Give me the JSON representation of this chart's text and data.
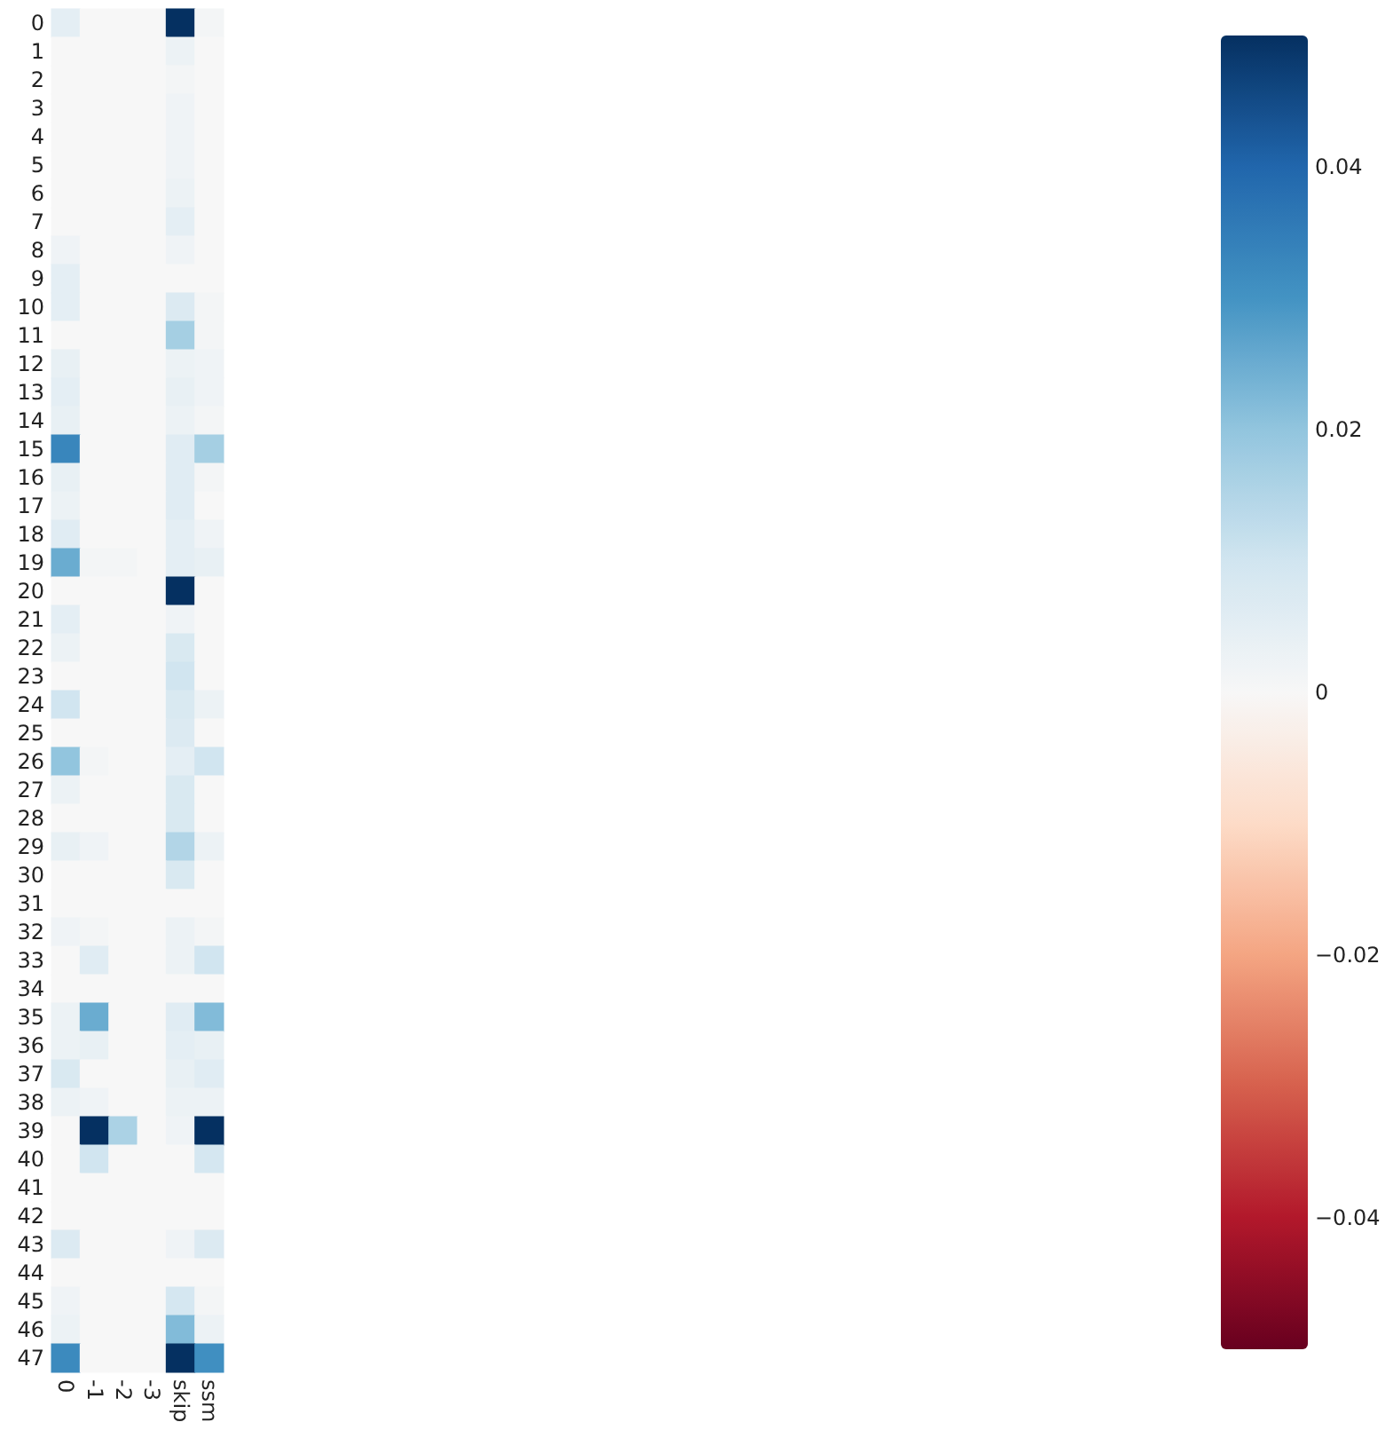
{
  "chart_data": {
    "type": "heatmap",
    "categories": [
      "0",
      "-1",
      "-2",
      "-3",
      "skip",
      "ssm"
    ],
    "y_categories": [
      "0",
      "1",
      "2",
      "3",
      "4",
      "5",
      "6",
      "7",
      "8",
      "9",
      "10",
      "11",
      "12",
      "13",
      "14",
      "15",
      "16",
      "17",
      "18",
      "19",
      "20",
      "21",
      "22",
      "23",
      "24",
      "25",
      "26",
      "27",
      "28",
      "29",
      "30",
      "31",
      "32",
      "33",
      "34",
      "35",
      "36",
      "37",
      "38",
      "39",
      "40",
      "41",
      "42",
      "43",
      "44",
      "45",
      "46",
      "47"
    ],
    "cells": [
      [
        0.005,
        0,
        0,
        0,
        0.05,
        0.001
      ],
      [
        0,
        0,
        0,
        0,
        0.003,
        0
      ],
      [
        0,
        0,
        0,
        0,
        0.001,
        0
      ],
      [
        0,
        0,
        0,
        0,
        0.002,
        0
      ],
      [
        0,
        0,
        0,
        0,
        0.002,
        0
      ],
      [
        0,
        0,
        0,
        0,
        0.002,
        0
      ],
      [
        0,
        0,
        0,
        0,
        0.003,
        0
      ],
      [
        0,
        0,
        0,
        0,
        0.005,
        0
      ],
      [
        0.002,
        0,
        0,
        0,
        0.002,
        0
      ],
      [
        0.005,
        0,
        0,
        0,
        0,
        0
      ],
      [
        0.005,
        0,
        0,
        0,
        0.007,
        0.001
      ],
      [
        0,
        0,
        0,
        0,
        0.017,
        0.001
      ],
      [
        0.004,
        0,
        0,
        0,
        0.003,
        0.002
      ],
      [
        0.005,
        0,
        0,
        0,
        0.004,
        0.002
      ],
      [
        0.004,
        0,
        0,
        0,
        0.003,
        0.001
      ],
      [
        0.033,
        0,
        0,
        0,
        0.006,
        0.017
      ],
      [
        0.004,
        0,
        0,
        0,
        0.006,
        0.001
      ],
      [
        0.003,
        0,
        0,
        0,
        0.006,
        0
      ],
      [
        0.006,
        0,
        0,
        0,
        0.005,
        0.002
      ],
      [
        0.025,
        0.001,
        0.001,
        0,
        0.005,
        0.004
      ],
      [
        0,
        0,
        0,
        0,
        0.05,
        0
      ],
      [
        0.005,
        0,
        0,
        0,
        0.002,
        0
      ],
      [
        0.003,
        0,
        0,
        0,
        0.008,
        0
      ],
      [
        0,
        0,
        0,
        0,
        0.01,
        0
      ],
      [
        0.01,
        0,
        0,
        0,
        0.008,
        0.003
      ],
      [
        0,
        0,
        0,
        0,
        0.007,
        0
      ],
      [
        0.02,
        0.001,
        0,
        0,
        0.005,
        0.01
      ],
      [
        0.003,
        0,
        0,
        0,
        0.008,
        0
      ],
      [
        0,
        0,
        0,
        0,
        0.008,
        0
      ],
      [
        0.004,
        0.002,
        0,
        0,
        0.015,
        0.003
      ],
      [
        0,
        0,
        0,
        0,
        0.008,
        0
      ],
      [
        0,
        0,
        0,
        0,
        0,
        0
      ],
      [
        0.002,
        0.001,
        0,
        0,
        0.003,
        0.001
      ],
      [
        0,
        0.006,
        0,
        0,
        0.003,
        0.01
      ],
      [
        0,
        0,
        0,
        0,
        0,
        0
      ],
      [
        0.003,
        0.025,
        0,
        0,
        0.006,
        0.022
      ],
      [
        0.003,
        0.004,
        0,
        0,
        0.005,
        0.004
      ],
      [
        0.008,
        0,
        0,
        0,
        0.004,
        0.006
      ],
      [
        0.003,
        0.002,
        0,
        0,
        0.003,
        0.003
      ],
      [
        0,
        0.05,
        0.016,
        0,
        0.002,
        0.05
      ],
      [
        0,
        0.01,
        0,
        0,
        0,
        0.009
      ],
      [
        0,
        0,
        0,
        0,
        0,
        0
      ],
      [
        0,
        0,
        0,
        0,
        0,
        0
      ],
      [
        0.007,
        0,
        0,
        0,
        0.002,
        0.007
      ],
      [
        0,
        0,
        0,
        0,
        0,
        0
      ],
      [
        0.002,
        0,
        0,
        0,
        0.009,
        0.001
      ],
      [
        0.003,
        0,
        0,
        0,
        0.022,
        0.003
      ],
      [
        0.032,
        0,
        0,
        0,
        0.05,
        0.031
      ]
    ],
    "clim": [
      -0.05,
      0.05
    ],
    "cticks": [
      {
        "value": -0.04,
        "label": "−0.04"
      },
      {
        "value": -0.02,
        "label": "−0.02"
      },
      0,
      0.02,
      0.04
    ]
  }
}
